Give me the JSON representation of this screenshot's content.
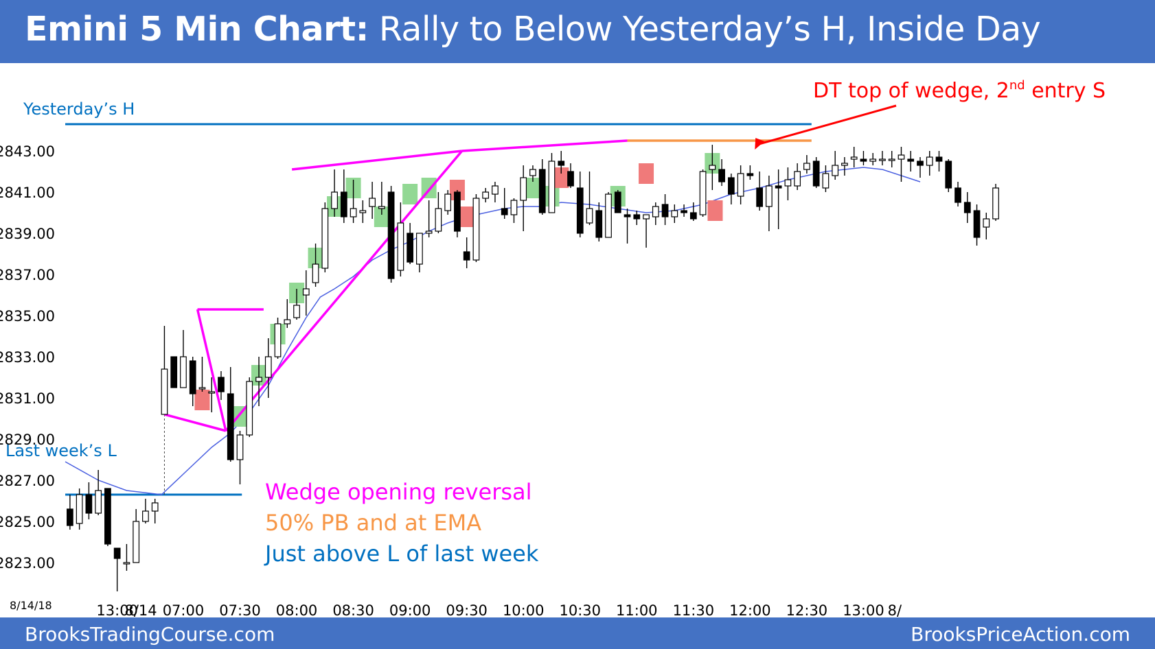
{
  "header": {
    "title_bold": "Emini 5 Min Chart:",
    "title_rest": " Rally to Below Yesterday’s H, Inside Day"
  },
  "footer": {
    "left": "BrooksTradingCourse.com",
    "right": "BrooksPriceAction.com"
  },
  "chart_data": {
    "type": "candlestick",
    "date_label": "8/14/18",
    "y_ticks": [
      "2823.00",
      "2825.00",
      "2827.00",
      "2829.00",
      "2831.00",
      "2833.00",
      "2835.00",
      "2837.00",
      "2839.00",
      "2841.00",
      "2843.00"
    ],
    "ylim": [
      2821.5,
      2844.5
    ],
    "x_ticks": [
      "13:00",
      "8/14",
      "07:00",
      "07:30",
      "08:00",
      "08:30",
      "09:00",
      "09:30",
      "10:00",
      "10:30",
      "11:00",
      "11:30",
      "12:00",
      "12:30",
      "13:00",
      "8/"
    ],
    "x_tick_index": [
      5,
      7.5,
      12,
      18,
      24,
      30,
      36,
      42,
      48,
      54,
      60,
      66,
      72,
      78,
      84,
      87.3
    ],
    "x_range": [
      -0.5,
      90
    ],
    "colors": {
      "magenta": "#ff00ff",
      "orange": "#f79646",
      "blue": "#0070c0",
      "red": "#ff0000",
      "green_box": "#92d894",
      "red_box": "#f07a7a",
      "ema": "#4a5fe0"
    },
    "candles": [
      [
        2825.6,
        2826.3,
        2824.6,
        2824.8
      ],
      [
        2824.9,
        2826.6,
        2824.6,
        2826.3
      ],
      [
        2826.3,
        2826.9,
        2825.1,
        2825.4
      ],
      [
        2825.4,
        2827.5,
        2825.3,
        2826.5
      ],
      [
        2826.6,
        2826.6,
        2823.8,
        2823.9
      ],
      [
        2823.7,
        2823.7,
        2821.6,
        2823.2
      ],
      [
        2823.0,
        2823.9,
        2822.6,
        2823.0
      ],
      [
        2823.0,
        2825.6,
        2823.0,
        2825.0
      ],
      [
        2825.0,
        2826.1,
        2824.9,
        2825.5
      ],
      [
        2825.5,
        2826.1,
        2824.9,
        2825.9
      ],
      [
        2830.2,
        2834.5,
        2830.2,
        2832.4
      ],
      [
        2833.0,
        2833.0,
        2831.5,
        2831.5
      ],
      [
        2831.5,
        2834.3,
        2831.5,
        2833.0
      ],
      [
        2832.8,
        2833.0,
        2830.6,
        2831.2
      ],
      [
        2831.5,
        2833.0,
        2831.3,
        2831.5
      ],
      [
        2831.3,
        2832.0,
        2830.3,
        2831.3
      ],
      [
        2832.0,
        2832.3,
        2830.9,
        2831.3
      ],
      [
        2831.2,
        2832.5,
        2827.9,
        2828.0
      ],
      [
        2828.0,
        2829.4,
        2826.8,
        2829.2
      ],
      [
        2829.2,
        2832.0,
        2829.1,
        2831.8
      ],
      [
        2831.8,
        2833.0,
        2830.6,
        2832.0
      ],
      [
        2832.0,
        2833.9,
        2831.0,
        2833.0
      ],
      [
        2833.0,
        2834.9,
        2832.9,
        2834.6
      ],
      [
        2834.6,
        2835.8,
        2834.4,
        2834.8
      ],
      [
        2834.9,
        2836.3,
        2834.8,
        2835.5
      ],
      [
        2836.0,
        2837.2,
        2835.0,
        2836.3
      ],
      [
        2836.6,
        2838.5,
        2836.4,
        2837.5
      ],
      [
        2837.3,
        2840.5,
        2837.1,
        2840.2
      ],
      [
        2840.2,
        2842.1,
        2839.8,
        2841.0
      ],
      [
        2841.0,
        2842.1,
        2839.5,
        2839.8
      ],
      [
        2839.8,
        2841.6,
        2839.5,
        2840.2
      ],
      [
        2840.0,
        2840.6,
        2839.5,
        2840.1
      ],
      [
        2840.3,
        2841.5,
        2839.7,
        2840.7
      ],
      [
        2840.2,
        2841.5,
        2839.9,
        2840.3
      ],
      [
        2841.0,
        2841.3,
        2836.6,
        2836.8
      ],
      [
        2837.2,
        2840.5,
        2836.9,
        2839.5
      ],
      [
        2839.0,
        2839.5,
        2837.5,
        2837.6
      ],
      [
        2837.5,
        2838.9,
        2837.1,
        2839.0
      ],
      [
        2839.0,
        2840.6,
        2838.8,
        2839.1
      ],
      [
        2839.1,
        2841.0,
        2839.0,
        2840.2
      ],
      [
        2840.1,
        2841.1,
        2839.9,
        2840.9
      ],
      [
        2841.0,
        2841.1,
        2838.8,
        2839.1
      ],
      [
        2838.1,
        2838.8,
        2837.3,
        2837.7
      ],
      [
        2837.7,
        2840.9,
        2837.6,
        2840.7
      ],
      [
        2840.7,
        2841.2,
        2840.5,
        2841.0
      ],
      [
        2840.9,
        2841.5,
        2840.5,
        2841.3
      ],
      [
        2840.2,
        2841.2,
        2839.7,
        2839.9
      ],
      [
        2839.9,
        2840.7,
        2839.5,
        2840.6
      ],
      [
        2840.6,
        2842.3,
        2839.1,
        2841.7
      ],
      [
        2841.8,
        2842.3,
        2841.5,
        2842.1
      ],
      [
        2842.1,
        2842.6,
        2839.9,
        2840.0
      ],
      [
        2840.0,
        2842.9,
        2840.0,
        2842.5
      ],
      [
        2842.5,
        2843.0,
        2841.9,
        2842.3
      ],
      [
        2842.0,
        2842.4,
        2841.2,
        2841.3
      ],
      [
        2841.2,
        2842.0,
        2838.8,
        2839.0
      ],
      [
        2839.5,
        2842.0,
        2839.4,
        2840.2
      ],
      [
        2840.1,
        2840.5,
        2838.6,
        2838.8
      ],
      [
        2838.8,
        2841.0,
        2838.8,
        2840.9
      ],
      [
        2841.0,
        2841.1,
        2840.0,
        2840.0
      ],
      [
        2839.9,
        2840.2,
        2838.5,
        2839.8
      ],
      [
        2839.9,
        2840.1,
        2839.4,
        2839.7
      ],
      [
        2839.7,
        2839.9,
        2838.3,
        2839.9
      ],
      [
        2839.8,
        2840.5,
        2839.4,
        2840.3
      ],
      [
        2840.4,
        2840.9,
        2839.4,
        2839.8
      ],
      [
        2839.8,
        2840.4,
        2839.5,
        2840.1
      ],
      [
        2840.1,
        2840.4,
        2839.8,
        2840.0
      ],
      [
        2840.0,
        2840.5,
        2839.6,
        2839.7
      ],
      [
        2839.9,
        2842.1,
        2839.8,
        2842.0
      ],
      [
        2842.1,
        2843.3,
        2841.1,
        2842.3
      ],
      [
        2842.1,
        2842.6,
        2841.3,
        2841.5
      ],
      [
        2841.7,
        2841.9,
        2840.4,
        2840.9
      ],
      [
        2840.8,
        2842.3,
        2840.4,
        2841.9
      ],
      [
        2841.9,
        2842.3,
        2841.6,
        2841.8
      ],
      [
        2841.2,
        2842.0,
        2840.1,
        2840.3
      ],
      [
        2840.3,
        2841.8,
        2839.1,
        2841.3
      ],
      [
        2841.3,
        2842.1,
        2839.2,
        2841.2
      ],
      [
        2841.3,
        2842.2,
        2840.6,
        2841.6
      ],
      [
        2841.3,
        2842.4,
        2841.1,
        2842.0
      ],
      [
        2842.1,
        2842.8,
        2841.9,
        2842.4
      ],
      [
        2842.5,
        2842.7,
        2841.2,
        2841.3
      ],
      [
        2841.2,
        2842.3,
        2841.0,
        2841.9
      ],
      [
        2841.8,
        2843.0,
        2841.6,
        2842.3
      ],
      [
        2842.3,
        2842.7,
        2841.8,
        2842.4
      ],
      [
        2842.6,
        2843.2,
        2842.2,
        2842.7
      ],
      [
        2842.6,
        2843.0,
        2842.3,
        2842.5
      ],
      [
        2842.5,
        2842.9,
        2842.3,
        2842.6
      ],
      [
        2842.6,
        2843.0,
        2842.3,
        2842.6
      ],
      [
        2842.6,
        2843.0,
        2842.2,
        2842.6
      ],
      [
        2842.6,
        2843.2,
        2841.5,
        2842.8
      ],
      [
        2842.6,
        2843.0,
        2842.0,
        2842.5
      ],
      [
        2842.5,
        2842.7,
        2841.7,
        2842.3
      ],
      [
        2842.3,
        2843.0,
        2841.8,
        2842.7
      ],
      [
        2842.7,
        2843.0,
        2842.0,
        2842.5
      ],
      [
        2842.5,
        2842.6,
        2841.0,
        2841.2
      ],
      [
        2841.2,
        2841.5,
        2840.3,
        2840.5
      ],
      [
        2840.5,
        2841.0,
        2839.5,
        2840.0
      ],
      [
        2840.1,
        2840.4,
        2838.4,
        2838.8
      ],
      [
        2839.3,
        2840.0,
        2838.7,
        2839.7
      ],
      [
        2839.7,
        2841.4,
        2839.6,
        2841.2
      ]
    ],
    "ema": [
      [
        -0.5,
        2827.9
      ],
      [
        3,
        2827.0
      ],
      [
        6,
        2826.5
      ],
      [
        9.7,
        2826.3
      ],
      [
        12,
        2827.3
      ],
      [
        15,
        2828.6
      ],
      [
        17,
        2829.3
      ],
      [
        19,
        2830.3
      ],
      [
        21,
        2831.6
      ],
      [
        23,
        2833.3
      ],
      [
        25,
        2834.9
      ],
      [
        26.5,
        2835.9
      ],
      [
        28,
        2836.3
      ],
      [
        30,
        2836.9
      ],
      [
        32,
        2837.7
      ],
      [
        34,
        2838.2
      ],
      [
        36,
        2838.6
      ],
      [
        38,
        2839.1
      ],
      [
        40,
        2839.5
      ],
      [
        42,
        2839.8
      ],
      [
        44,
        2840.0
      ],
      [
        46,
        2840.2
      ],
      [
        48,
        2840.3
      ],
      [
        50,
        2840.3
      ],
      [
        52,
        2840.5
      ],
      [
        55,
        2840.4
      ],
      [
        58,
        2840.2
      ],
      [
        61,
        2840.0
      ],
      [
        64,
        2840.1
      ],
      [
        67,
        2840.4
      ],
      [
        70,
        2840.9
      ],
      [
        73,
        2841.2
      ],
      [
        76,
        2841.6
      ],
      [
        78,
        2841.8
      ],
      [
        80,
        2842.0
      ],
      [
        82,
        2842.1
      ],
      [
        84,
        2842.2
      ],
      [
        86,
        2842.1
      ],
      [
        88,
        2841.8
      ],
      [
        90,
        2841.5
      ]
    ],
    "green_boxes": [
      [
        17.2,
        18.8,
        2830.6,
        2829.6
      ],
      [
        19.2,
        20.8,
        2832.6,
        2831.6
      ],
      [
        21.2,
        22.8,
        2834.6,
        2833.6
      ],
      [
        23.2,
        24.8,
        2836.6,
        2835.6
      ],
      [
        25.2,
        26.8,
        2838.3,
        2837.3
      ],
      [
        27.2,
        28.8,
        2840.8,
        2839.8
      ],
      [
        29.2,
        30.8,
        2841.7,
        2840.7
      ],
      [
        32.2,
        33.8,
        2840.3,
        2839.3
      ],
      [
        35.2,
        36.8,
        2841.4,
        2840.4
      ],
      [
        37.2,
        38.8,
        2841.7,
        2840.7
      ],
      [
        48.2,
        49.8,
        2841.7,
        2840.7
      ],
      [
        50.2,
        51.8,
        2841.3,
        2840.3
      ],
      [
        57.2,
        58.8,
        2841.3,
        2840.3
      ],
      [
        67.2,
        68.8,
        2842.9,
        2841.9
      ]
    ],
    "red_boxes": [
      [
        13.2,
        14.8,
        2831.4,
        2830.4
      ],
      [
        40.2,
        41.8,
        2841.6,
        2840.6
      ],
      [
        41.2,
        42.8,
        2840.3,
        2839.3
      ],
      [
        51.2,
        52.8,
        2842.2,
        2841.2
      ],
      [
        60.2,
        61.8,
        2842.4,
        2841.4
      ],
      [
        67.5,
        69.1,
        2840.6,
        2839.6
      ]
    ],
    "magenta_lines": [
      [
        [
          10,
          2830.2
        ],
        [
          16.5,
          2829.4
        ]
      ],
      [
        [
          10,
          2830.2
        ],
        [
          10,
          2826.3
        ]
      ],
      [
        [
          13.5,
          2835.3
        ],
        [
          20.5,
          2835.3
        ]
      ],
      [
        [
          13.5,
          2835.3
        ],
        [
          16.5,
          2829.4
        ]
      ],
      [
        [
          23.5,
          2842.1
        ],
        [
          41.5,
          2843.0
        ]
      ],
      [
        [
          16.5,
          2829.4
        ],
        [
          41.5,
          2843.0
        ]
      ],
      [
        [
          41.5,
          2843.0
        ],
        [
          59,
          2843.5
        ]
      ]
    ],
    "orange_line": [
      [
        59,
        2843.5
      ],
      [
        78.5,
        2843.5
      ]
    ],
    "levels": [
      {
        "label": "Yesterday’s H",
        "value": 2844.3,
        "x_start": -0.5,
        "x_end": 78.5
      },
      {
        "label": "Last week’s L",
        "value": 2826.3,
        "x_start": -0.5,
        "x_end": 18.2
      }
    ],
    "annotations": [
      {
        "lines": [
          "Wedge opening reversal",
          "50% PB and at EMA",
          "Just above L of last week"
        ]
      },
      {
        "text": "DT top of wedge, 2",
        "sup": "nd",
        "text2": " entry S",
        "x": 72.5,
        "y": 2843.0
      }
    ]
  }
}
